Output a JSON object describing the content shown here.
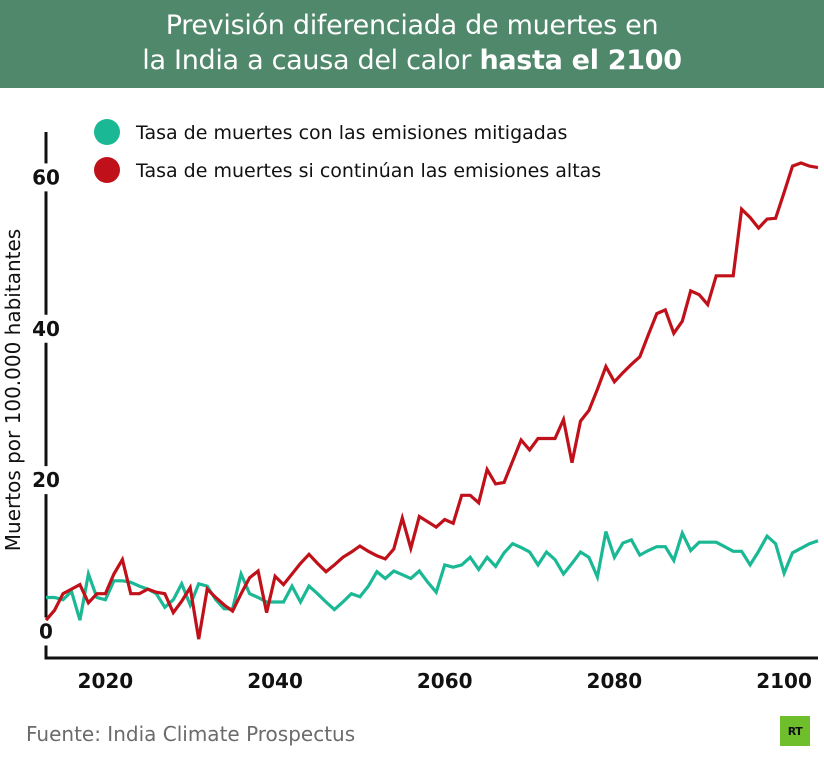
{
  "header": {
    "title_line1": "Previsión diferenciada de muertes en",
    "title_line2_regular": "la India a causa del calor ",
    "title_line2_bold": "hasta el 2100"
  },
  "footer": {
    "source": "Fuente: India Climate Prospectus",
    "logo_text": "RT"
  },
  "colors": {
    "header_bg": "#4f886a",
    "mitigated": "#1ab894",
    "high": "#c0111a",
    "logo": "#6fbf2c"
  },
  "chart_data": {
    "type": "line",
    "title": "Previsión diferenciada de muertes en la India a causa del calor hasta el 2100",
    "xlabel": "",
    "ylabel": "Muertos por 100.000 habitantes",
    "xlim": [
      2013,
      2104
    ],
    "ylim": [
      -3.5,
      66
    ],
    "x_ticks": [
      2020,
      2040,
      2060,
      2080,
      2100
    ],
    "x_tick_labels": [
      "2020",
      "2040",
      "2060",
      "2080",
      "2100"
    ],
    "y_ticks": [
      0,
      20,
      40,
      60
    ],
    "y_tick_labels": [
      "0",
      "20",
      "40",
      "60"
    ],
    "grid": false,
    "legend_position": "top-left",
    "series": [
      {
        "name": "Tasa de muertes con las emisiones mitigadas",
        "color": "#1ab894",
        "x": [
          2013,
          2014,
          2015,
          2016,
          2017,
          2018,
          2019,
          2020,
          2021,
          2022,
          2023,
          2024,
          2025,
          2026,
          2027,
          2028,
          2029,
          2030,
          2031,
          2032,
          2033,
          2034,
          2035,
          2036,
          2037,
          2038,
          2039,
          2040,
          2041,
          2042,
          2043,
          2044,
          2045,
          2046,
          2047,
          2048,
          2049,
          2050,
          2051,
          2052,
          2053,
          2054,
          2055,
          2056,
          2057,
          2058,
          2059,
          2060,
          2061,
          2062,
          2063,
          2064,
          2065,
          2066,
          2067,
          2068,
          2069,
          2070,
          2071,
          2072,
          2073,
          2074,
          2075,
          2076,
          2077,
          2078,
          2079,
          2080,
          2081,
          2082,
          2083,
          2084,
          2085,
          2086,
          2087,
          2088,
          2089,
          2090,
          2091,
          2092,
          2093,
          2094,
          2095,
          2096,
          2097,
          2098,
          2099,
          2100,
          2101,
          2102,
          2103,
          2104
        ],
        "values": [
          4.5,
          4.5,
          4.2,
          5.3,
          1.5,
          7.6,
          4.5,
          4.2,
          6.7,
          6.7,
          6.5,
          6.0,
          5.6,
          5.0,
          3.2,
          4.2,
          6.3,
          3.5,
          6.3,
          6.0,
          4.2,
          3.0,
          3.0,
          7.6,
          5.0,
          4.5,
          3.9,
          3.9,
          3.9,
          6.0,
          3.9,
          6.0,
          5.0,
          3.9,
          2.9,
          3.9,
          5.0,
          4.6,
          6.0,
          7.9,
          7.0,
          8.0,
          7.5,
          7.0,
          8.0,
          6.5,
          5.2,
          8.8,
          8.5,
          8.8,
          9.8,
          8.2,
          9.8,
          8.6,
          10.4,
          11.6,
          11.1,
          10.5,
          8.8,
          10.5,
          9.5,
          7.6,
          9.0,
          10.5,
          9.8,
          7.2,
          13.2,
          9.8,
          11.7,
          12.1,
          10.1,
          10.7,
          11.2,
          11.2,
          9.4,
          13.0,
          10.7,
          11.8,
          11.8,
          11.8,
          11.2,
          10.6,
          10.6,
          8.8,
          10.6,
          12.6,
          11.6,
          7.7,
          10.4,
          11.0,
          11.6,
          12.0
        ]
      },
      {
        "name": "Tasa de muertes si continúan las emisiones altas",
        "color": "#c0111a",
        "x": [
          2013,
          2014,
          2015,
          2016,
          2017,
          2018,
          2019,
          2020,
          2021,
          2022,
          2023,
          2024,
          2025,
          2026,
          2027,
          2028,
          2029,
          2030,
          2031,
          2032,
          2033,
          2034,
          2035,
          2036,
          2037,
          2038,
          2039,
          2040,
          2041,
          2042,
          2043,
          2044,
          2045,
          2046,
          2047,
          2048,
          2049,
          2050,
          2051,
          2052,
          2053,
          2054,
          2055,
          2056,
          2057,
          2058,
          2059,
          2060,
          2061,
          2062,
          2063,
          2064,
          2065,
          2066,
          2067,
          2068,
          2069,
          2070,
          2071,
          2072,
          2073,
          2074,
          2075,
          2076,
          2077,
          2078,
          2079,
          2080,
          2081,
          2082,
          2083,
          2084,
          2085,
          2086,
          2087,
          2088,
          2089,
          2090,
          2091,
          2092,
          2093,
          2094,
          2095,
          2096,
          2097,
          2098,
          2099,
          2100,
          2101,
          2102,
          2103,
          2104
        ],
        "values": [
          1.5,
          2.8,
          5.0,
          5.6,
          6.2,
          3.8,
          5.0,
          5.0,
          7.6,
          9.5,
          5.0,
          5.0,
          5.6,
          5.2,
          5.0,
          2.5,
          4.0,
          5.8,
          -1.0,
          5.6,
          4.5,
          3.5,
          2.7,
          5.0,
          7.1,
          8.0,
          2.5,
          7.3,
          6.2,
          7.6,
          9.0,
          10.2,
          9.0,
          7.9,
          8.8,
          9.8,
          10.5,
          11.3,
          10.6,
          10.0,
          9.6,
          10.9,
          15.0,
          11.0,
          15.2,
          14.5,
          13.8,
          14.8,
          14.3,
          18.0,
          18.0,
          17.0,
          21.4,
          19.5,
          19.7,
          22.5,
          25.3,
          24.0,
          25.5,
          25.5,
          25.5,
          28.0,
          22.3,
          27.8,
          29.2,
          32.0,
          35.0,
          33.0,
          34.2,
          35.3,
          36.3,
          39.2,
          42.0,
          42.5,
          39.4,
          41.0,
          45.0,
          44.5,
          43.2,
          47.0,
          47.0,
          47.0,
          55.8,
          54.7,
          53.3,
          54.5,
          54.6,
          58.0,
          61.5,
          61.9,
          61.5,
          61.3
        ]
      }
    ]
  }
}
